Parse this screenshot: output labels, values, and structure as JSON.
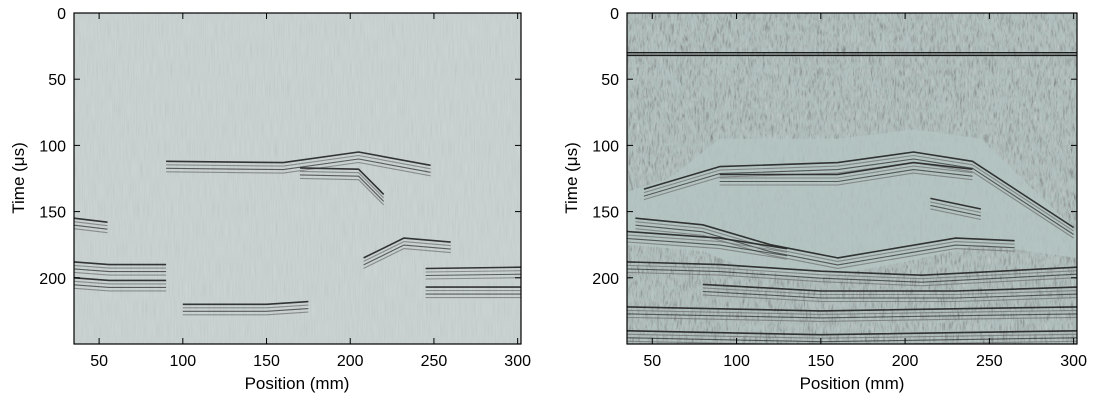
{
  "chart_data": [
    {
      "type": "heatmap",
      "xlabel": "Position (mm)",
      "ylabel": "Time (μs)",
      "xlim": [
        35,
        302
      ],
      "ylim": [
        250,
        0
      ],
      "y_inverted": true,
      "x_ticks": [
        50,
        100,
        150,
        200,
        250,
        300
      ],
      "y_ticks": [
        0,
        50,
        100,
        150,
        200
      ],
      "colormap": "grayscale",
      "background_color": "#c9d3d2",
      "reflectors": [
        {
          "points": [
            [
              90,
              112
            ],
            [
              160,
              113
            ],
            [
              205,
              105
            ],
            [
              248,
              115
            ]
          ]
        },
        {
          "points": [
            [
              170,
              117
            ],
            [
              205,
              118
            ],
            [
              220,
              137
            ]
          ]
        },
        {
          "points": [
            [
              35,
              155
            ],
            [
              55,
              158
            ]
          ]
        },
        {
          "points": [
            [
              35,
              188
            ],
            [
              56,
              190
            ],
            [
              90,
              190
            ]
          ]
        },
        {
          "points": [
            [
              35,
              200
            ],
            [
              56,
              202
            ],
            [
              90,
              202
            ]
          ]
        },
        {
          "points": [
            [
              208,
              185
            ],
            [
              232,
              170
            ],
            [
              260,
              173
            ]
          ]
        },
        {
          "points": [
            [
              245,
              193
            ],
            [
              302,
              192
            ]
          ]
        },
        {
          "points": [
            [
              245,
              207
            ],
            [
              302,
              207
            ]
          ]
        },
        {
          "points": [
            [
              100,
              220
            ],
            [
              150,
              220
            ],
            [
              175,
              218
            ]
          ]
        }
      ],
      "noise": "low"
    },
    {
      "type": "heatmap",
      "xlabel": "Position (mm)",
      "ylabel": "Time (μs)",
      "xlim": [
        35,
        302
      ],
      "ylim": [
        250,
        0
      ],
      "y_inverted": true,
      "x_ticks": [
        50,
        100,
        150,
        200,
        250,
        300
      ],
      "y_ticks": [
        0,
        50,
        100,
        150,
        200
      ],
      "colormap": "grayscale",
      "background_color": "#b4c4c2",
      "horizontal_bands": [
        30,
        32
      ],
      "reflectors": [
        {
          "points": [
            [
              45,
              133
            ],
            [
              90,
              116
            ],
            [
              160,
              113
            ],
            [
              205,
              105
            ],
            [
              240,
              112
            ],
            [
              300,
              162
            ]
          ]
        },
        {
          "points": [
            [
              90,
              122
            ],
            [
              160,
              122
            ],
            [
              205,
              113
            ],
            [
              240,
              118
            ]
          ]
        },
        {
          "points": [
            [
              40,
              155
            ],
            [
              80,
              160
            ],
            [
              120,
              175
            ],
            [
              160,
              185
            ],
            [
              230,
              170
            ],
            [
              265,
              172
            ]
          ]
        },
        {
          "points": [
            [
              35,
              165
            ],
            [
              90,
              170
            ],
            [
              130,
              178
            ]
          ]
        },
        {
          "points": [
            [
              35,
              188
            ],
            [
              90,
              190
            ],
            [
              150,
              195
            ],
            [
              210,
              198
            ],
            [
              302,
              192
            ]
          ]
        },
        {
          "points": [
            [
              80,
              205
            ],
            [
              150,
              210
            ],
            [
              230,
              210
            ],
            [
              302,
              207
            ]
          ]
        },
        {
          "points": [
            [
              35,
              222
            ],
            [
              150,
              225
            ],
            [
              302,
              222
            ]
          ]
        },
        {
          "points": [
            [
              35,
              240
            ],
            [
              150,
              243
            ],
            [
              302,
              240
            ]
          ]
        },
        {
          "points": [
            [
              215,
              140
            ],
            [
              245,
              148
            ]
          ]
        }
      ],
      "noise": "high"
    }
  ]
}
